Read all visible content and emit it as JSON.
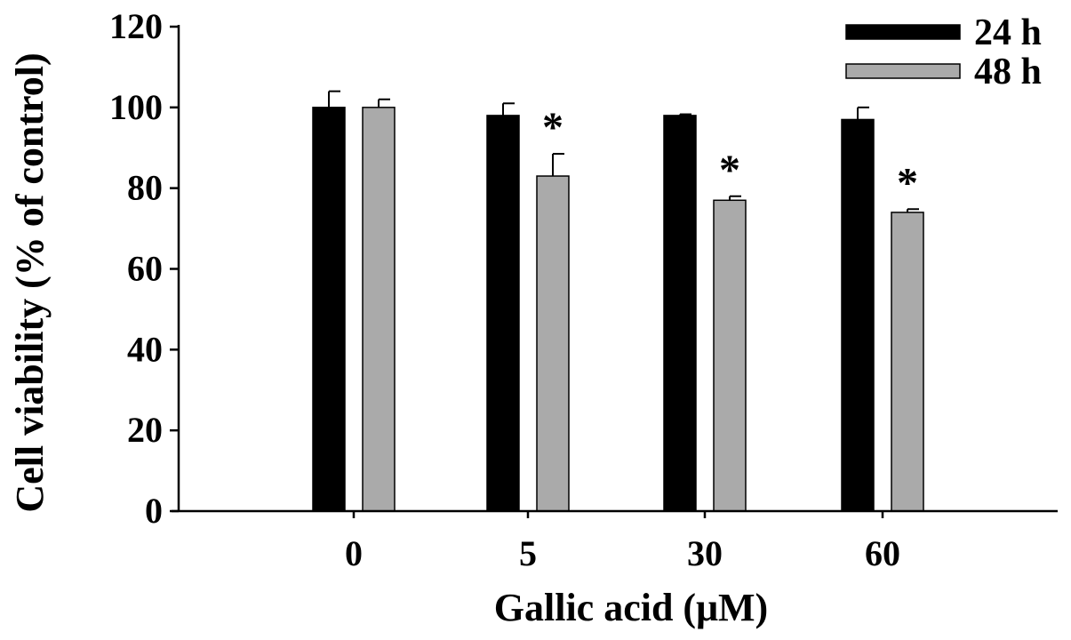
{
  "chart_data": {
    "type": "bar",
    "title": "",
    "xlabel": "Gallic acid (μM)",
    "ylabel": "Cell viability (% of control)",
    "ylim": [
      0,
      120
    ],
    "yticks": [
      0,
      20,
      40,
      60,
      80,
      100,
      120
    ],
    "categories": [
      "0",
      "5",
      "30",
      "60"
    ],
    "series": [
      {
        "name": "24 h",
        "color": "#000000",
        "values": [
          100,
          98,
          98,
          97
        ],
        "errors": [
          4,
          3,
          0.3,
          3
        ]
      },
      {
        "name": "48 h",
        "color": "#aaaaaa",
        "values": [
          100,
          83,
          77,
          74
        ],
        "errors": [
          2,
          5.5,
          1,
          0.8
        ]
      }
    ],
    "annotations": [
      {
        "category": "5",
        "series": "48 h",
        "text": "*"
      },
      {
        "category": "30",
        "series": "48 h",
        "text": "*"
      },
      {
        "category": "60",
        "series": "48 h",
        "text": "*"
      }
    ],
    "grid": false,
    "legend_position": "top-right"
  }
}
